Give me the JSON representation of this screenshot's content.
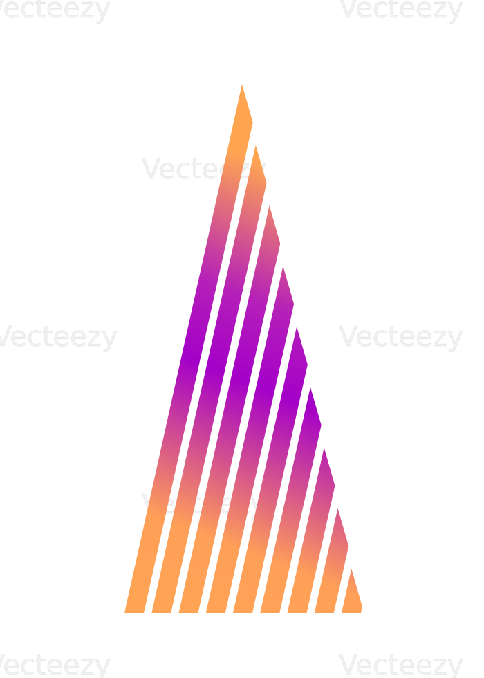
{
  "watermark": "Vecteezy"
}
